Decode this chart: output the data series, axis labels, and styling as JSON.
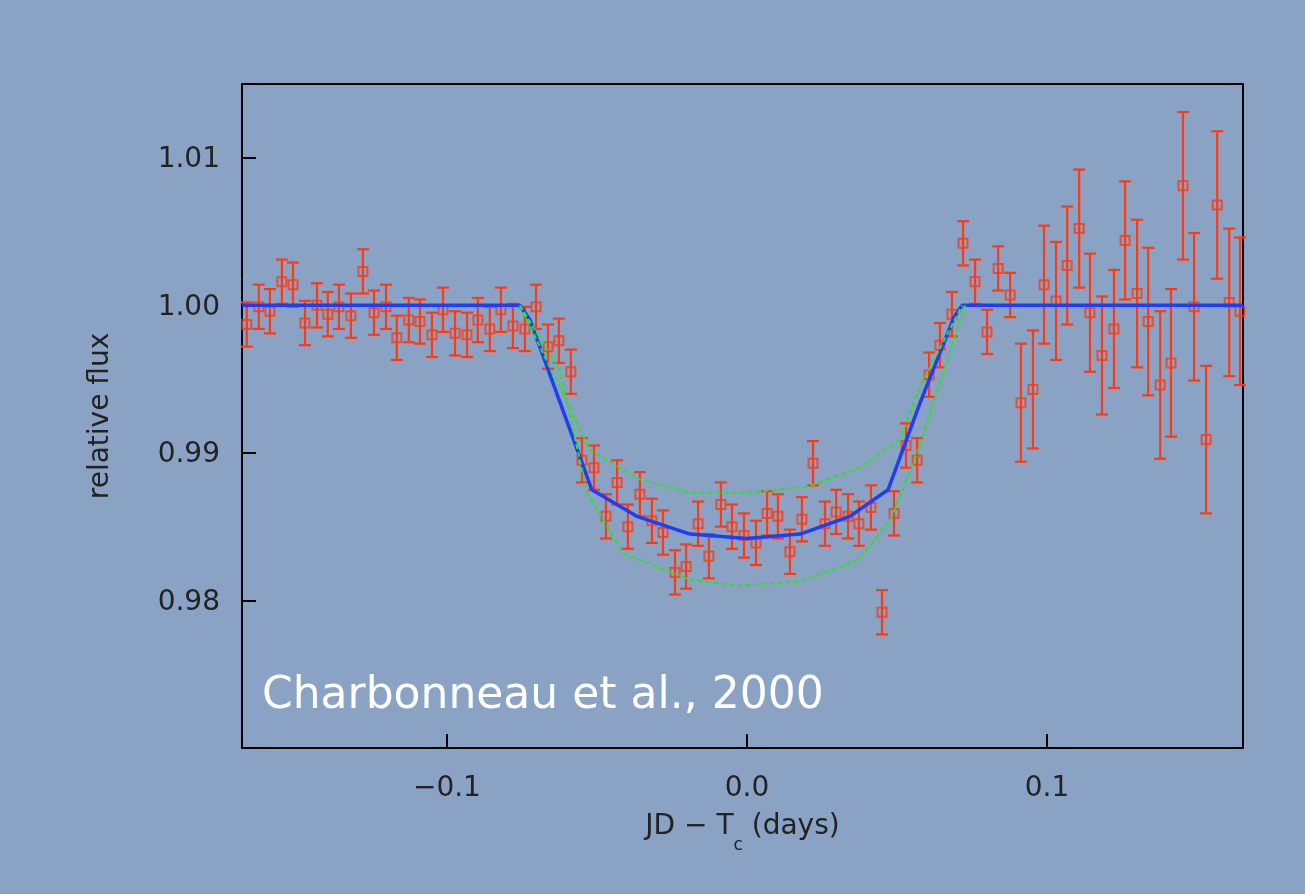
{
  "chart_data": {
    "type": "scatter",
    "xlabel": "JD − T$_{c}$ (days)",
    "ylabel": "relative flux",
    "xlim": [
      -0.1683,
      0.1653
    ],
    "ylim": [
      0.97,
      1.015
    ],
    "xticks": [
      {
        "value": -0.1,
        "label": "−0.1"
      },
      {
        "value": 0,
        "label": "0.0"
      },
      0.1
    ],
    "yticks": [
      0.98,
      0.99,
      {
        "value": 1,
        "label": "1.00"
      },
      1.01
    ],
    "annotations": [
      "Charbonneau et al., 2000"
    ],
    "series": [
      {
        "color": "#ff3a12",
        "marker": "square",
        "x": [
          -0.1667,
          -0.1627,
          -0.159,
          -0.155,
          -0.1513,
          -0.1473,
          -0.1433,
          -0.1397,
          -0.136,
          -0.132,
          -0.128,
          -0.1243,
          -0.1203,
          -0.1167,
          -0.1127,
          -0.109,
          -0.105,
          -0.1013,
          -0.0973,
          -0.0933,
          -0.0897,
          -0.0857,
          -0.082,
          -0.078,
          -0.074,
          -0.0703,
          -0.0663,
          -0.0627,
          -0.0587,
          -0.055,
          -0.051,
          -0.047,
          -0.0433,
          -0.0397,
          -0.0357,
          -0.0317,
          -0.028,
          -0.024,
          -0.0203,
          -0.0163,
          -0.0127,
          -0.0087,
          -0.005,
          -0.001,
          0.003,
          0.0067,
          0.0103,
          0.0143,
          0.0183,
          0.022,
          0.026,
          0.0297,
          0.0337,
          0.0373,
          0.0413,
          0.045,
          0.049,
          0.053,
          0.0567,
          0.0607,
          0.0643,
          0.0683,
          0.072,
          0.076,
          0.08,
          0.0837,
          0.0877,
          0.0913,
          0.0953,
          0.099,
          0.103,
          0.1067,
          0.1107,
          0.1143,
          0.1183,
          0.1223,
          0.126,
          0.13,
          0.1337,
          0.1377,
          0.1413,
          0.1453,
          0.149,
          0.153,
          0.1567,
          0.1607,
          0.1643
        ],
        "values": [
          0.9987,
          0.9999,
          0.9996,
          1.0016,
          1.0014,
          0.9988,
          1.0,
          0.9994,
          0.9999,
          0.9993,
          1.0023,
          0.9995,
          0.9999,
          0.9978,
          0.999,
          0.9989,
          0.998,
          0.9997,
          0.9981,
          0.998,
          0.999,
          0.9984,
          0.9997,
          0.9986,
          0.9984,
          0.9999,
          0.9972,
          0.9976,
          0.9955,
          0.9895,
          0.989,
          0.9857,
          0.988,
          0.985,
          0.9872,
          0.9854,
          0.9846,
          0.9819,
          0.9823,
          0.9852,
          0.983,
          0.9865,
          0.985,
          0.9844,
          0.9839,
          0.9859,
          0.9857,
          0.9833,
          0.9855,
          0.9893,
          0.9852,
          0.986,
          0.9857,
          0.9852,
          0.9863,
          0.9792,
          0.9859,
          0.9905,
          0.9895,
          0.9953,
          0.9973,
          0.9994,
          1.0042,
          1.0016,
          0.9982,
          1.0025,
          1.0007,
          0.9934,
          0.9943,
          1.0014,
          1.0003,
          1.0027,
          1.0052,
          0.9995,
          0.9966,
          0.9984,
          1.0044,
          1.0008,
          0.9989,
          0.9946,
          0.9961,
          1.0081,
          0.9999,
          0.9909,
          1.0068,
          1.0002,
          0.9996
        ],
        "errors": [
          0.0015,
          0.0015,
          0.0015,
          0.0015,
          0.0015,
          0.0015,
          0.0015,
          0.0015,
          0.0015,
          0.0015,
          0.0015,
          0.0015,
          0.0015,
          0.0015,
          0.0015,
          0.0015,
          0.0015,
          0.0015,
          0.0015,
          0.0015,
          0.0015,
          0.0015,
          0.0015,
          0.0015,
          0.0015,
          0.0015,
          0.0015,
          0.0015,
          0.0015,
          0.0015,
          0.0015,
          0.0015,
          0.0015,
          0.0015,
          0.0015,
          0.0015,
          0.0015,
          0.0015,
          0.0015,
          0.0015,
          0.0015,
          0.0015,
          0.0015,
          0.0015,
          0.0015,
          0.0015,
          0.0015,
          0.0015,
          0.0015,
          0.0015,
          0.0015,
          0.0015,
          0.0015,
          0.0015,
          0.0015,
          0.0015,
          0.0015,
          0.0015,
          0.0015,
          0.0015,
          0.0015,
          0.0015,
          0.0015,
          0.0015,
          0.0015,
          0.0015,
          0.0015,
          0.004,
          0.004,
          0.004,
          0.004,
          0.004,
          0.004,
          0.004,
          0.004,
          0.004,
          0.004,
          0.005,
          0.005,
          0.005,
          0.005,
          0.005,
          0.005,
          0.005,
          0.005,
          0.005,
          0.005
        ]
      },
      {
        "type": "line",
        "color": "#1f3df5",
        "marker": "none",
        "line_style": "solid",
        "x": [
          -0.1683,
          -0.0757,
          -0.0723,
          -0.0517,
          -0.0367,
          -0.019,
          0.0,
          0.0177,
          0.0343,
          0.047,
          0.0577,
          0.069,
          0.0717,
          0.1653
        ],
        "values": [
          1.0,
          1.0,
          0.999,
          0.9875,
          0.9857,
          0.9845,
          0.9842,
          0.9845,
          0.9857,
          0.9875,
          0.9934,
          0.9992,
          1.0,
          1.0
        ]
      },
      {
        "type": "line",
        "color": "#2fe02a",
        "marker": "none",
        "line_style": "dashed",
        "x": [
          -0.0757,
          -0.0523,
          -0.0357,
          -0.019,
          0.0,
          0.02,
          0.0377,
          0.051,
          0.0577,
          0.0717
        ],
        "values": [
          1.0,
          0.9902,
          0.9882,
          0.9873,
          0.9873,
          0.9877,
          0.989,
          0.9909,
          0.9945,
          1.0
        ]
      },
      {
        "type": "line",
        "color": "#2fe02a",
        "marker": "none",
        "line_style": "dashed",
        "x": [
          -0.0757,
          -0.0623,
          -0.0533,
          -0.0413,
          -0.019,
          -0.0023,
          0.0177,
          0.0367,
          0.0477,
          0.0567,
          0.0727
        ],
        "values": [
          1.0,
          0.9956,
          0.9873,
          0.9832,
          0.9814,
          0.981,
          0.9813,
          0.9827,
          0.9854,
          0.99,
          1.0
        ]
      }
    ]
  }
}
